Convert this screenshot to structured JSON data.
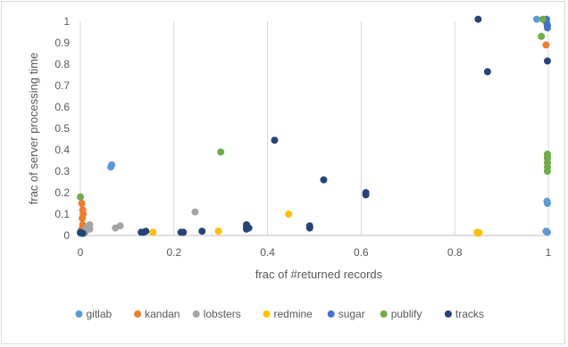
{
  "chart_data": {
    "type": "scatter",
    "title": "",
    "xlabel": "frac of #returned  records",
    "ylabel": "frac of server processing  time",
    "xlim": [
      0,
      1
    ],
    "ylim": [
      0,
      1
    ],
    "x_ticks": [
      "0",
      "0.2",
      "0.4",
      "0.6",
      "0.8",
      "1"
    ],
    "y_ticks": [
      "0",
      "0.1",
      "0.2",
      "0.3",
      "0.4",
      "0.5",
      "0.6",
      "0.7",
      "0.8",
      "0.9",
      "1"
    ],
    "grid": "vertical",
    "legend": "bottom",
    "series": [
      {
        "name": "gitlab",
        "color": "#5b9bd5",
        "points": [
          [
            0.0,
            0.01
          ],
          [
            0.005,
            0.02
          ],
          [
            0.01,
            0.015
          ],
          [
            0.065,
            0.32
          ],
          [
            0.067,
            0.33
          ],
          [
            0.975,
            1.01
          ],
          [
            0.995,
            0.02
          ],
          [
            0.998,
            0.015
          ],
          [
            0.997,
            0.16
          ],
          [
            0.998,
            0.15
          ]
        ]
      },
      {
        "name": "kandan",
        "color": "#ed7d31",
        "points": [
          [
            0.003,
            0.15
          ],
          [
            0.005,
            0.12
          ],
          [
            0.006,
            0.1
          ],
          [
            0.004,
            0.08
          ],
          [
            0.005,
            0.05
          ],
          [
            0.003,
            0.03
          ],
          [
            0.006,
            0.01
          ],
          [
            0.995,
            0.89
          ]
        ]
      },
      {
        "name": "lobsters",
        "color": "#a5a5a5",
        "points": [
          [
            0.02,
            0.05
          ],
          [
            0.02,
            0.03
          ],
          [
            0.015,
            0.04
          ],
          [
            0.075,
            0.035
          ],
          [
            0.085,
            0.045
          ],
          [
            0.245,
            0.11
          ],
          [
            0.01,
            0.02
          ]
        ]
      },
      {
        "name": "redmine",
        "color": "#ffc000",
        "points": [
          [
            0.155,
            0.015
          ],
          [
            0.295,
            0.02
          ],
          [
            0.445,
            0.1
          ],
          [
            0.848,
            0.015
          ],
          [
            0.852,
            0.013
          ],
          [
            0.85,
            0.01
          ]
        ]
      },
      {
        "name": "sugar",
        "color": "#4472c4",
        "points": [
          [
            0.995,
            1.0
          ],
          [
            0.997,
            0.99
          ],
          [
            0.998,
            0.98
          ],
          [
            0.996,
            1.01
          ],
          [
            0.998,
            0.97
          ]
        ]
      },
      {
        "name": "publify",
        "color": "#70ad47",
        "points": [
          [
            0.0,
            0.18
          ],
          [
            0.3,
            0.39
          ],
          [
            0.985,
            0.93
          ],
          [
            0.988,
            1.01
          ],
          [
            0.998,
            0.38
          ],
          [
            0.998,
            0.36
          ],
          [
            0.998,
            0.34
          ],
          [
            0.998,
            0.32
          ],
          [
            0.998,
            0.3
          ],
          [
            0.998,
            0.37
          ]
        ]
      },
      {
        "name": "tracks",
        "color": "#264478",
        "points": [
          [
            0.0,
            0.015
          ],
          [
            0.005,
            0.01
          ],
          [
            0.13,
            0.015
          ],
          [
            0.135,
            0.015
          ],
          [
            0.14,
            0.02
          ],
          [
            0.215,
            0.015
          ],
          [
            0.22,
            0.015
          ],
          [
            0.26,
            0.02
          ],
          [
            0.355,
            0.03
          ],
          [
            0.355,
            0.04
          ],
          [
            0.36,
            0.035
          ],
          [
            0.355,
            0.05
          ],
          [
            0.415,
            0.445
          ],
          [
            0.49,
            0.035
          ],
          [
            0.49,
            0.045
          ],
          [
            0.52,
            0.26
          ],
          [
            0.61,
            0.19
          ],
          [
            0.61,
            0.2
          ],
          [
            0.85,
            1.01
          ],
          [
            0.87,
            0.765
          ],
          [
            0.998,
            0.815
          ]
        ]
      }
    ]
  }
}
